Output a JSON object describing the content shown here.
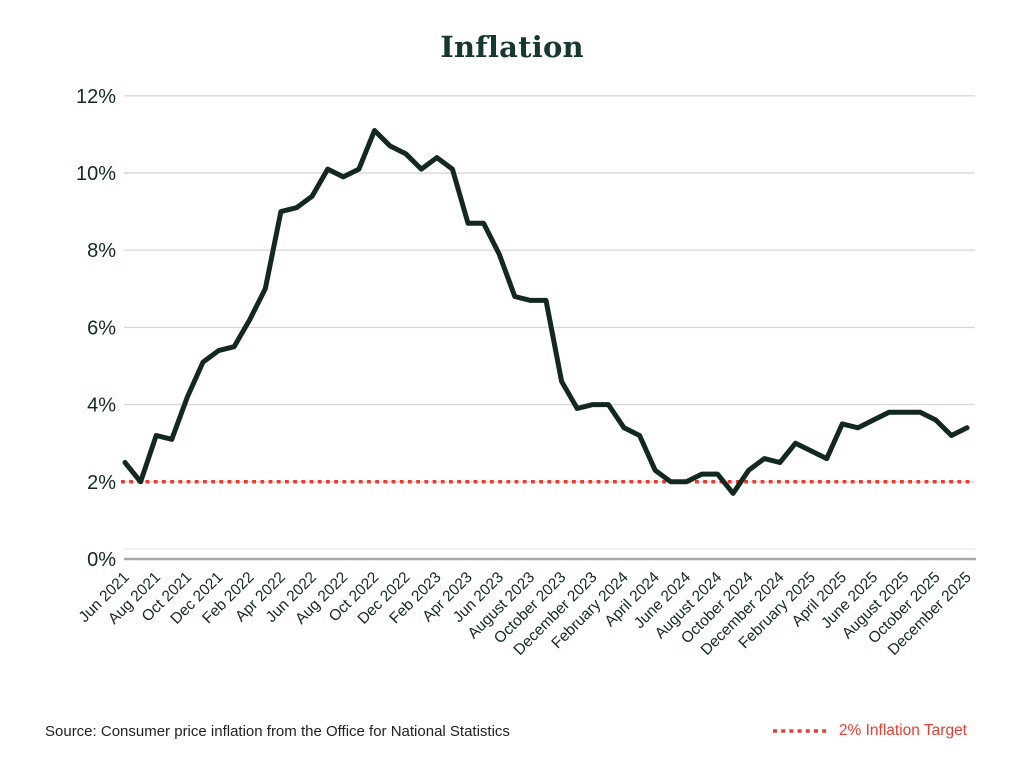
{
  "title": "Inflation",
  "footer": {
    "source_note": "Source: Consumer price inflation from the Office for National Statistics",
    "legend_label": "2% Inflation Target"
  },
  "colors": {
    "background": "#ffffff",
    "line": "#13291f",
    "title_text": "#173830",
    "tick_text": "#13291f",
    "target_red": "#e93c32",
    "gridline": "#d9d9d9",
    "subgridline": "#eaeaea",
    "axis": "#a8a8a8",
    "source_text": "#212121"
  },
  "chart_data": {
    "type": "line",
    "title": "Inflation",
    "frequency": "monthly",
    "x_range": "Jun 2021 - Dec 2025",
    "x_tick_labels": [
      "Jun 2021",
      "Aug 2021",
      "Oct 2021",
      "Dec 2021",
      "Feb 2022",
      "Apr 2022",
      "Jun 2022",
      "Aug 2022",
      "Oct 2022",
      "Dec 2022",
      "Feb 2023",
      "Apr 2023",
      "Jun 2023",
      "August 2023",
      "October 2023",
      "December 2023",
      "February 2024",
      "April 2024",
      "June 2024",
      "August 2024",
      "October 2024",
      "December 2024",
      "February 2025",
      "April 2025",
      "June 2025",
      "August 2025",
      "October 2025",
      "December 2025"
    ],
    "y_ticks": [
      "0%",
      "2%",
      "4%",
      "6%",
      "8%",
      "10%",
      "12%"
    ],
    "ylim": [
      0,
      12
    ],
    "grid": "horizontal",
    "legend_position": "bottom-right",
    "series": [
      {
        "name": "Consumer price inflation",
        "values": [
          2.5,
          2.0,
          3.2,
          3.1,
          4.2,
          5.1,
          5.4,
          5.5,
          6.2,
          7.0,
          9.0,
          9.1,
          9.4,
          10.1,
          9.9,
          10.1,
          11.1,
          10.7,
          10.5,
          10.1,
          10.4,
          10.1,
          8.7,
          8.7,
          7.9,
          6.8,
          6.7,
          6.7,
          4.6,
          3.9,
          4.0,
          4.0,
          3.4,
          3.2,
          2.3,
          2.0,
          2.0,
          2.2,
          2.2,
          1.7,
          2.3,
          2.6,
          2.5,
          3.0,
          2.8,
          2.6,
          3.5,
          3.4,
          3.6,
          3.8,
          3.8,
          3.8,
          3.6,
          3.2,
          3.4
        ]
      }
    ],
    "target_line": {
      "value": 2,
      "style": "dotted",
      "label": "2% Inflation Target"
    }
  }
}
